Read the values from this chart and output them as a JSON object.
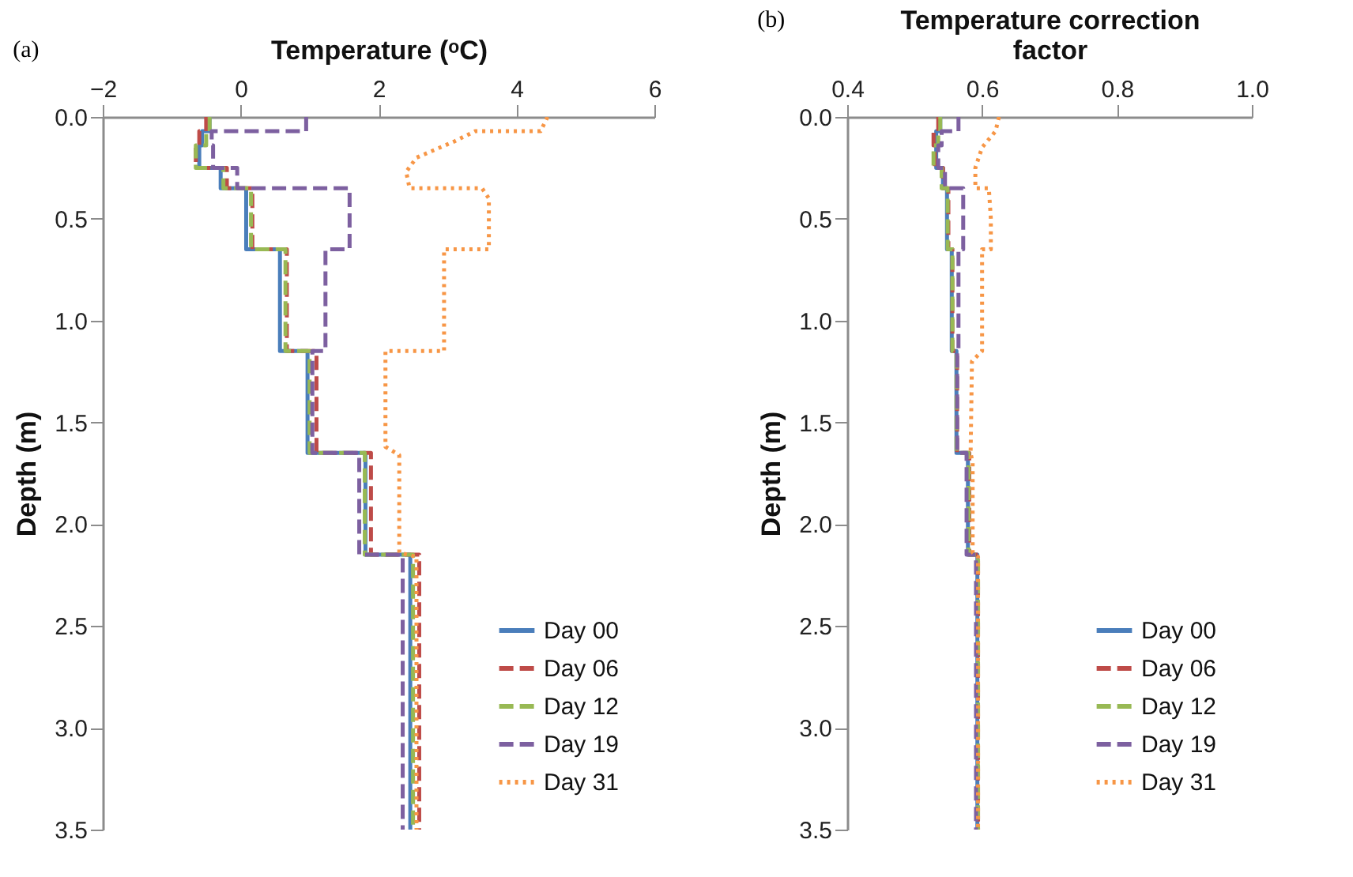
{
  "chart_data": [
    {
      "type": "line",
      "xlabel": "Temperature (ᵒC)",
      "ylabel": "Depth (m)",
      "annotations": [
        "(a)"
      ],
      "xlim": [
        -2,
        6
      ],
      "xticks": [
        -2,
        0,
        2,
        4,
        6
      ],
      "ylim": [
        3.5,
        0
      ],
      "yticks": [
        {
          "value": 0,
          "label": "0.0"
        },
        0.5,
        {
          "value": 1,
          "label": "1.0"
        },
        1.5,
        {
          "value": 2,
          "label": "2.0"
        },
        2.5,
        {
          "value": 3,
          "label": "3.0"
        },
        3.5
      ],
      "grid": false,
      "legend": "bottom right",
      "series": [
        {
          "name": "Day 00",
          "color": "#4a7ebb",
          "line_style": "solid",
          "x": [
            -0.45,
            -0.45,
            -0.56,
            -0.56,
            -0.6,
            -0.6,
            -0.29,
            -0.29,
            0.08,
            0.08,
            0.57,
            0.57,
            0.97,
            0.97,
            1.81,
            1.81,
            2.46,
            2.46
          ],
          "values": [
            0,
            0.07,
            0.07,
            0.14,
            0.14,
            0.25,
            0.25,
            0.35,
            0.35,
            0.65,
            0.65,
            1.15,
            1.15,
            1.65,
            1.65,
            2.15,
            2.15,
            3.5
          ]
        },
        {
          "name": "Day 06",
          "color": "#be4b48",
          "line_style": "dashed",
          "x": [
            -0.5,
            -0.5,
            -0.6,
            -0.6,
            -0.65,
            -0.65,
            -0.2,
            -0.2,
            0.17,
            0.17,
            0.67,
            0.67,
            1.1,
            1.1,
            1.89,
            1.89,
            2.59,
            2.59
          ],
          "values": [
            0,
            0.07,
            0.07,
            0.14,
            0.14,
            0.25,
            0.25,
            0.35,
            0.35,
            0.65,
            0.65,
            1.15,
            1.15,
            1.65,
            1.65,
            2.15,
            2.15,
            3.5
          ]
        },
        {
          "name": "Day 12",
          "color": "#98b954",
          "line_style": "dashed",
          "x": [
            -0.45,
            -0.45,
            -0.5,
            -0.5,
            -0.65,
            -0.65,
            -0.25,
            -0.25,
            0.15,
            0.15,
            0.65,
            0.65,
            1.0,
            1.0,
            1.8,
            1.8,
            2.5,
            2.5
          ],
          "values": [
            0,
            0.07,
            0.07,
            0.14,
            0.14,
            0.25,
            0.25,
            0.35,
            0.35,
            0.65,
            0.65,
            1.15,
            1.15,
            1.65,
            1.65,
            2.15,
            2.15,
            3.5
          ]
        },
        {
          "name": "Day 19",
          "color": "#7d60a0",
          "line_style": "dashed",
          "x": [
            0.95,
            0.95,
            -0.42,
            -0.42,
            -0.4,
            -0.4,
            -0.05,
            -0.05,
            1.58,
            1.58,
            1.23,
            1.23,
            1.04,
            1.04,
            1.72,
            1.72,
            2.35,
            2.35
          ],
          "values": [
            0,
            0.07,
            0.07,
            0.14,
            0.14,
            0.25,
            0.25,
            0.35,
            0.35,
            0.65,
            0.65,
            1.15,
            1.15,
            1.65,
            1.65,
            2.15,
            2.15,
            3.5
          ]
        },
        {
          "name": "Day 31",
          "color": "#f79646",
          "line_style": "dotted",
          "x": [
            4.45,
            4.35,
            3.4,
            3.1,
            2.55,
            2.4,
            2.45,
            3.5,
            3.6,
            3.6,
            2.95,
            2.95,
            2.1,
            2.1,
            2.3,
            2.3,
            2.55,
            2.55
          ],
          "values": [
            0,
            0.07,
            0.07,
            0.12,
            0.2,
            0.27,
            0.35,
            0.35,
            0.4,
            0.65,
            0.65,
            1.15,
            1.15,
            1.62,
            1.66,
            2.14,
            2.16,
            3.5
          ]
        }
      ]
    },
    {
      "type": "line",
      "xlabel": "Temperature correction factor",
      "ylabel": "Depth (m)",
      "annotations": [
        "(b)"
      ],
      "xlim": [
        0.4,
        1
      ],
      "xticks": [
        0.4,
        0.6,
        0.8,
        {
          "value": 1,
          "label": "1.0"
        }
      ],
      "ylim": [
        3.5,
        0
      ],
      "yticks": [
        {
          "value": 0,
          "label": "0.0"
        },
        0.5,
        {
          "value": 1,
          "label": "1.0"
        },
        1.5,
        {
          "value": 2,
          "label": "2.0"
        },
        2.5,
        {
          "value": 3,
          "label": "3.0"
        },
        3.5
      ],
      "grid": false,
      "legend": "bottom right",
      "series": [
        {
          "name": "Day 00",
          "color": "#4a7ebb",
          "line_style": "solid",
          "x": [
            0.538,
            0.538,
            0.532,
            0.532,
            0.532,
            0.532,
            0.542,
            0.542,
            0.548,
            0.548,
            0.555,
            0.555,
            0.562,
            0.562,
            0.579,
            0.579,
            0.593,
            0.593
          ],
          "values": [
            0,
            0.07,
            0.07,
            0.14,
            0.14,
            0.25,
            0.25,
            0.35,
            0.35,
            0.65,
            0.65,
            1.15,
            1.15,
            1.65,
            1.65,
            2.15,
            2.15,
            3.5
          ]
        },
        {
          "name": "Day 06",
          "color": "#be4b48",
          "line_style": "dashed",
          "x": [
            0.535,
            0.535,
            0.528,
            0.528,
            0.53,
            0.53,
            0.542,
            0.542,
            0.55,
            0.55,
            0.556,
            0.556,
            0.563,
            0.563,
            0.581,
            0.581,
            0.594,
            0.594
          ],
          "values": [
            0,
            0.07,
            0.07,
            0.14,
            0.14,
            0.25,
            0.25,
            0.35,
            0.35,
            0.65,
            0.65,
            1.15,
            1.15,
            1.65,
            1.65,
            2.15,
            2.15,
            3.5
          ]
        },
        {
          "name": "Day 12",
          "color": "#98b954",
          "line_style": "dashed",
          "x": [
            0.538,
            0.538,
            0.535,
            0.535,
            0.528,
            0.528,
            0.54,
            0.54,
            0.549,
            0.549,
            0.556,
            0.556,
            0.562,
            0.562,
            0.58,
            0.58,
            0.594,
            0.594
          ],
          "values": [
            0,
            0.07,
            0.07,
            0.14,
            0.14,
            0.25,
            0.25,
            0.35,
            0.35,
            0.65,
            0.65,
            1.15,
            1.15,
            1.65,
            1.65,
            2.15,
            2.15,
            3.5
          ]
        },
        {
          "name": "Day 19",
          "color": "#7d60a0",
          "line_style": "dashed",
          "x": [
            0.565,
            0.565,
            0.54,
            0.54,
            0.535,
            0.535,
            0.545,
            0.545,
            0.572,
            0.572,
            0.565,
            0.565,
            0.563,
            0.563,
            0.577,
            0.577,
            0.591,
            0.591
          ],
          "values": [
            0,
            0.07,
            0.07,
            0.14,
            0.14,
            0.25,
            0.25,
            0.35,
            0.35,
            0.65,
            0.65,
            1.15,
            1.15,
            1.65,
            1.65,
            2.15,
            2.15,
            3.5
          ]
        },
        {
          "name": "Day 31",
          "color": "#f79646",
          "line_style": "dotted",
          "x": [
            0.625,
            0.62,
            0.6,
            0.59,
            0.59,
            0.61,
            0.613,
            0.613,
            0.6,
            0.6,
            0.585,
            0.583,
            0.586,
            0.586,
            0.594,
            0.594
          ],
          "values": [
            0,
            0.07,
            0.15,
            0.25,
            0.35,
            0.35,
            0.5,
            0.65,
            0.65,
            1.15,
            1.2,
            1.65,
            1.7,
            2.14,
            2.16,
            3.5
          ]
        }
      ]
    }
  ]
}
